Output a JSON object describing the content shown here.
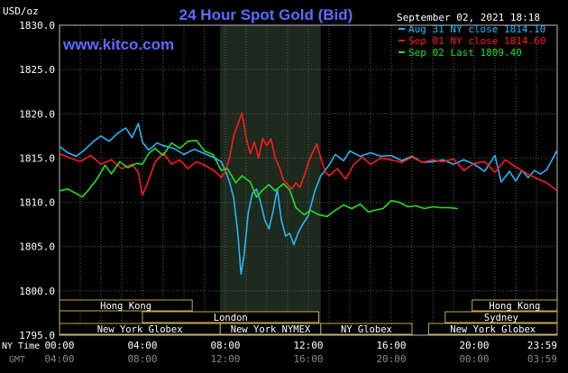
{
  "chart_data": {
    "type": "line",
    "title": "24 Hour Spot Gold (Bid)",
    "currency_label": "USD/oz",
    "website": "www.kitco.com",
    "date_label": "September 02, 2021 18:18",
    "ylim": [
      1795.0,
      1830.0
    ],
    "yticks": [
      "1830.0",
      "1825.0",
      "1820.0",
      "1815.0",
      "1810.0",
      "1805.0",
      "1800.0",
      "1795.0"
    ],
    "xrange_hours": [
      0,
      24
    ],
    "xticks_ny": [
      "00:00",
      "04:00",
      "08:00",
      "12:00",
      "16:00",
      "20:00",
      "23:59"
    ],
    "xticks_gmt": [
      "04:00",
      "08:00",
      "12:00",
      "16:00",
      "20:00",
      "00:00",
      "03:59"
    ],
    "ny_time_label": "NY Time",
    "gmt_label": "GMT",
    "highlight_hours": [
      7.75,
      12.6
    ],
    "grid": true,
    "legend_position": "top-right",
    "series": [
      {
        "name": "Aug 31 NY close 1814.10",
        "color": "#29b6f6",
        "points": [
          [
            0,
            1816.3
          ],
          [
            0.4,
            1815.6
          ],
          [
            0.8,
            1815.2
          ],
          [
            1.2,
            1815.9
          ],
          [
            1.6,
            1816.8
          ],
          [
            2.0,
            1817.5
          ],
          [
            2.4,
            1816.9
          ],
          [
            2.8,
            1817.8
          ],
          [
            3.2,
            1818.4
          ],
          [
            3.5,
            1817.3
          ],
          [
            3.8,
            1818.9
          ],
          [
            4.0,
            1816.8
          ],
          [
            4.3,
            1815.9
          ],
          [
            4.7,
            1816.7
          ],
          [
            5.0,
            1816.4
          ],
          [
            5.5,
            1816.1
          ],
          [
            6.0,
            1815.4
          ],
          [
            6.5,
            1816.0
          ],
          [
            7.0,
            1815.5
          ],
          [
            7.5,
            1815.0
          ],
          [
            7.8,
            1814.6
          ],
          [
            8.0,
            1813.6
          ],
          [
            8.2,
            1812.3
          ],
          [
            8.4,
            1810.5
          ],
          [
            8.6,
            1806.5
          ],
          [
            8.75,
            1801.9
          ],
          [
            8.9,
            1804.0
          ],
          [
            9.1,
            1808.8
          ],
          [
            9.3,
            1811.0
          ],
          [
            9.5,
            1811.5
          ],
          [
            9.7,
            1810.0
          ],
          [
            9.9,
            1808.0
          ],
          [
            10.1,
            1807.0
          ],
          [
            10.3,
            1809.0
          ],
          [
            10.5,
            1811.5
          ],
          [
            10.7,
            1808.0
          ],
          [
            10.9,
            1806.2
          ],
          [
            11.1,
            1806.5
          ],
          [
            11.3,
            1805.2
          ],
          [
            11.5,
            1806.5
          ],
          [
            11.7,
            1807.4
          ],
          [
            12.0,
            1808.5
          ],
          [
            12.3,
            1811.2
          ],
          [
            12.6,
            1813.0
          ],
          [
            13.0,
            1814.2
          ],
          [
            13.3,
            1815.4
          ],
          [
            13.7,
            1814.7
          ],
          [
            14.0,
            1815.8
          ],
          [
            14.5,
            1815.2
          ],
          [
            15.0,
            1815.6
          ],
          [
            15.5,
            1815.2
          ],
          [
            16.0,
            1815.3
          ],
          [
            16.5,
            1814.7
          ],
          [
            17.0,
            1815.2
          ],
          [
            17.5,
            1814.5
          ],
          [
            18.0,
            1814.6
          ],
          [
            18.5,
            1814.8
          ],
          [
            19.0,
            1814.3
          ],
          [
            19.5,
            1814.8
          ],
          [
            20.0,
            1814.3
          ],
          [
            20.5,
            1813.5
          ],
          [
            21.0,
            1815.3
          ],
          [
            21.3,
            1812.3
          ],
          [
            21.7,
            1813.5
          ],
          [
            22.0,
            1812.4
          ],
          [
            22.3,
            1813.6
          ],
          [
            22.6,
            1812.8
          ],
          [
            22.9,
            1813.6
          ],
          [
            23.2,
            1813.2
          ],
          [
            23.5,
            1813.7
          ],
          [
            23.8,
            1815.0
          ],
          [
            24.0,
            1815.9
          ]
        ]
      },
      {
        "name": "Sep 01 NY close 1814.60",
        "color": "#ff1a1a",
        "points": [
          [
            0,
            1815.5
          ],
          [
            0.5,
            1815.0
          ],
          [
            1.0,
            1814.6
          ],
          [
            1.5,
            1815.3
          ],
          [
            2.0,
            1814.3
          ],
          [
            2.5,
            1814.8
          ],
          [
            3.0,
            1813.8
          ],
          [
            3.5,
            1814.3
          ],
          [
            3.8,
            1813.4
          ],
          [
            4.0,
            1810.8
          ],
          [
            4.3,
            1812.5
          ],
          [
            4.6,
            1814.5
          ],
          [
            5.0,
            1815.6
          ],
          [
            5.4,
            1814.3
          ],
          [
            5.8,
            1814.8
          ],
          [
            6.2,
            1813.8
          ],
          [
            6.6,
            1814.6
          ],
          [
            7.0,
            1814.2
          ],
          [
            7.5,
            1813.5
          ],
          [
            7.8,
            1812.8
          ],
          [
            8.0,
            1813.5
          ],
          [
            8.2,
            1815.0
          ],
          [
            8.4,
            1817.5
          ],
          [
            8.6,
            1818.8
          ],
          [
            8.8,
            1820.1
          ],
          [
            9.0,
            1817.3
          ],
          [
            9.2,
            1815.5
          ],
          [
            9.4,
            1816.8
          ],
          [
            9.6,
            1815.0
          ],
          [
            9.8,
            1817.2
          ],
          [
            10.0,
            1816.4
          ],
          [
            10.2,
            1817.2
          ],
          [
            10.4,
            1815.0
          ],
          [
            10.6,
            1814.0
          ],
          [
            10.8,
            1812.5
          ],
          [
            11.0,
            1812.0
          ],
          [
            11.2,
            1811.5
          ],
          [
            11.4,
            1812.2
          ],
          [
            11.6,
            1811.7
          ],
          [
            11.8,
            1813.0
          ],
          [
            12.0,
            1814.5
          ],
          [
            12.2,
            1815.6
          ],
          [
            12.4,
            1816.6
          ],
          [
            12.6,
            1815.0
          ],
          [
            12.8,
            1813.5
          ],
          [
            13.0,
            1813.0
          ],
          [
            13.4,
            1813.8
          ],
          [
            13.8,
            1812.6
          ],
          [
            14.2,
            1814.3
          ],
          [
            14.6,
            1815.1
          ],
          [
            15.0,
            1814.3
          ],
          [
            15.5,
            1815.0
          ],
          [
            16.0,
            1814.8
          ],
          [
            16.5,
            1814.5
          ],
          [
            17.0,
            1815.1
          ],
          [
            17.5,
            1814.5
          ],
          [
            18.0,
            1814.8
          ],
          [
            18.5,
            1814.6
          ],
          [
            19.0,
            1814.9
          ],
          [
            19.5,
            1813.6
          ],
          [
            20.0,
            1814.4
          ],
          [
            20.5,
            1814.6
          ],
          [
            21.0,
            1813.4
          ],
          [
            21.5,
            1814.8
          ],
          [
            22.0,
            1814.0
          ],
          [
            22.5,
            1813.3
          ],
          [
            23.0,
            1812.7
          ],
          [
            23.5,
            1812.2
          ],
          [
            24.0,
            1811.3
          ]
        ]
      },
      {
        "name": "Sep 02 Last 1809.40",
        "color": "#22e022",
        "points": [
          [
            0,
            1811.3
          ],
          [
            0.4,
            1811.5
          ],
          [
            0.8,
            1811.0
          ],
          [
            1.1,
            1810.6
          ],
          [
            1.4,
            1811.4
          ],
          [
            1.8,
            1812.6
          ],
          [
            2.2,
            1814.2
          ],
          [
            2.5,
            1813.2
          ],
          [
            2.9,
            1814.6
          ],
          [
            3.3,
            1813.9
          ],
          [
            3.7,
            1814.4
          ],
          [
            4.0,
            1814.3
          ],
          [
            4.3,
            1815.5
          ],
          [
            4.6,
            1816.1
          ],
          [
            5.0,
            1815.3
          ],
          [
            5.4,
            1816.7
          ],
          [
            5.8,
            1816.1
          ],
          [
            6.2,
            1816.9
          ],
          [
            6.6,
            1817.0
          ],
          [
            7.0,
            1815.8
          ],
          [
            7.4,
            1815.4
          ],
          [
            7.8,
            1813.6
          ],
          [
            8.1,
            1813.8
          ],
          [
            8.5,
            1812.2
          ],
          [
            8.8,
            1813.0
          ],
          [
            9.2,
            1812.3
          ],
          [
            9.5,
            1810.6
          ],
          [
            9.8,
            1811.4
          ],
          [
            10.1,
            1812.0
          ],
          [
            10.4,
            1811.3
          ],
          [
            10.8,
            1812.1
          ],
          [
            11.1,
            1811.4
          ],
          [
            11.4,
            1809.4
          ],
          [
            11.8,
            1808.6
          ],
          [
            12.1,
            1809.1
          ],
          [
            12.5,
            1808.6
          ],
          [
            12.9,
            1808.4
          ],
          [
            13.3,
            1809.1
          ],
          [
            13.7,
            1809.7
          ],
          [
            14.1,
            1809.3
          ],
          [
            14.5,
            1809.8
          ],
          [
            14.9,
            1808.9
          ],
          [
            15.2,
            1809.1
          ],
          [
            15.6,
            1809.3
          ],
          [
            16.0,
            1810.2
          ],
          [
            16.4,
            1810.0
          ],
          [
            16.8,
            1809.5
          ],
          [
            17.2,
            1809.6
          ],
          [
            17.6,
            1809.3
          ],
          [
            18.0,
            1809.5
          ],
          [
            18.4,
            1809.4
          ],
          [
            18.8,
            1809.4
          ],
          [
            19.2,
            1809.3
          ]
        ]
      }
    ],
    "session_rows": [
      [
        {
          "label": "Hong Kong",
          "start": 0,
          "end": 6.4
        }
      ],
      [
        {
          "label": "London",
          "start": 4.0,
          "end": 12.5
        }
      ],
      [
        {
          "label": "New York Globex",
          "start": 0,
          "end": 7.75
        },
        {
          "label": "New York NYMEX",
          "start": 7.75,
          "end": 12.6
        },
        {
          "label": "NY Globex",
          "start": 12.6,
          "end": 17.0
        }
      ]
    ],
    "session_rows_right": [
      [
        {
          "label": "Hong Kong",
          "start": 19.9,
          "end": 24.0
        }
      ],
      [
        {
          "label": "Sydney",
          "start": 18.6,
          "end": 24.0
        }
      ],
      [
        {
          "label": "New York Globex",
          "start": 17.8,
          "end": 24.0
        }
      ]
    ]
  }
}
